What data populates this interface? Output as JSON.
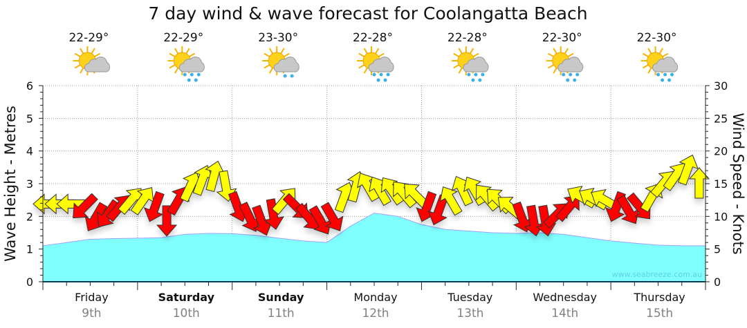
{
  "chart_data": {
    "type": "area",
    "title": "7 day wind & wave forecast for Coolangatta Beach",
    "ylabel": "Wave Height - Metres",
    "y2label": "Wind Speed - Knots",
    "ylim": [
      0,
      6
    ],
    "y2lim": [
      0,
      30
    ],
    "yticks": [
      "0",
      "1",
      "2",
      "3",
      "4",
      "5",
      "6"
    ],
    "y2ticks": [
      "0",
      "5",
      "10",
      "15",
      "20",
      "25",
      "30"
    ],
    "watermark": "www.seabreeze.com.au",
    "days": [
      {
        "name": "Friday",
        "date": "9th",
        "temp": "22-29°",
        "weather": "partly-cloudy",
        "bold": false
      },
      {
        "name": "Saturday",
        "date": "10th",
        "temp": "22-29°",
        "weather": "showers",
        "bold": true
      },
      {
        "name": "Sunday",
        "date": "11th",
        "temp": "23-30°",
        "weather": "light-showers",
        "bold": true
      },
      {
        "name": "Monday",
        "date": "12th",
        "temp": "22-28°",
        "weather": "showers",
        "bold": false
      },
      {
        "name": "Tuesday",
        "date": "13th",
        "temp": "22-28°",
        "weather": "showers",
        "bold": false
      },
      {
        "name": "Wednesday",
        "date": "14th",
        "temp": "22-30°",
        "weather": "showers",
        "bold": false
      },
      {
        "name": "Thursday",
        "date": "15th",
        "temp": "22-30°",
        "weather": "showers",
        "bold": false
      }
    ],
    "wave_series": {
      "name": "Wave Height (m)",
      "step_hours": 6,
      "color": "#80ffff",
      "values": [
        1.1,
        1.2,
        1.3,
        1.32,
        1.33,
        1.35,
        1.45,
        1.48,
        1.47,
        1.42,
        1.33,
        1.25,
        1.2,
        1.7,
        2.1,
        2.0,
        1.75,
        1.6,
        1.55,
        1.5,
        1.48,
        1.5,
        1.45,
        1.35,
        1.25,
        1.18,
        1.12,
        1.1,
        1.1
      ]
    },
    "wind_series": {
      "name": "Wind Speed (kn)",
      "step_hours": 3,
      "colors": {
        "R": "#ff0000",
        "Y": "#ffff00"
      },
      "speed": [
        11.9,
        11.9,
        11.9,
        11.4,
        9.8,
        10.3,
        11.4,
        12.5,
        12.5,
        11.4,
        9.3,
        12.5,
        14.6,
        15.6,
        16.2,
        14.6,
        11.4,
        9.8,
        9.3,
        10.3,
        12.5,
        11.4,
        9.8,
        9.3,
        9.8,
        13.0,
        14.6,
        14.6,
        14.0,
        14.0,
        13.5,
        13.3,
        11.4,
        10.9,
        12.5,
        14.0,
        14.0,
        13.0,
        12.5,
        11.4,
        9.8,
        9.3,
        9.3,
        10.3,
        11.4,
        13.0,
        12.7,
        12.5,
        11.4,
        10.9,
        11.4,
        13.0,
        15.1,
        16.2,
        17.2,
        15.1
      ],
      "direction": [
        270,
        270,
        270,
        225,
        210,
        215,
        40,
        40,
        35,
        200,
        180,
        30,
        25,
        20,
        15,
        170,
        160,
        155,
        160,
        170,
        40,
        135,
        140,
        150,
        150,
        20,
        15,
        330,
        330,
        325,
        320,
        315,
        200,
        200,
        330,
        335,
        330,
        320,
        315,
        310,
        160,
        170,
        170,
        45,
        40,
        300,
        300,
        300,
        200,
        150,
        140,
        30,
        40,
        35,
        20,
        0
      ],
      "color": [
        "Y",
        "Y",
        "Y",
        "R",
        "R",
        "R",
        "R",
        "Y",
        "Y",
        "R",
        "R",
        "R",
        "Y",
        "Y",
        "Y",
        "Y",
        "R",
        "R",
        "R",
        "R",
        "Y",
        "R",
        "R",
        "R",
        "R",
        "Y",
        "Y",
        "Y",
        "Y",
        "Y",
        "Y",
        "Y",
        "R",
        "R",
        "Y",
        "Y",
        "Y",
        "Y",
        "Y",
        "Y",
        "R",
        "R",
        "R",
        "R",
        "R",
        "Y",
        "Y",
        "Y",
        "R",
        "R",
        "R",
        "Y",
        "Y",
        "Y",
        "Y",
        "Y"
      ]
    }
  }
}
